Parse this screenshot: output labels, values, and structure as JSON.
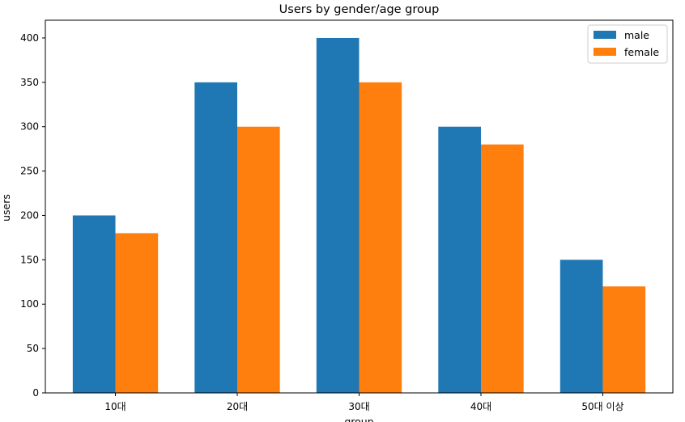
{
  "chart_data": {
    "type": "bar",
    "title": "Users by gender/age group",
    "xlabel": "group",
    "ylabel": "users",
    "categories": [
      "10대",
      "20대",
      "30대",
      "40대",
      "50대 이상"
    ],
    "series": [
      {
        "name": "male",
        "values": [
          200,
          350,
          400,
          300,
          150
        ],
        "color": "#1f77b4"
      },
      {
        "name": "female",
        "values": [
          180,
          300,
          350,
          280,
          120
        ],
        "color": "#ff7f0e"
      }
    ],
    "ylim": [
      0,
      420
    ],
    "yticks": [
      0,
      50,
      100,
      150,
      200,
      250,
      300,
      350,
      400
    ],
    "grid": false,
    "legend_position": "top-right"
  }
}
